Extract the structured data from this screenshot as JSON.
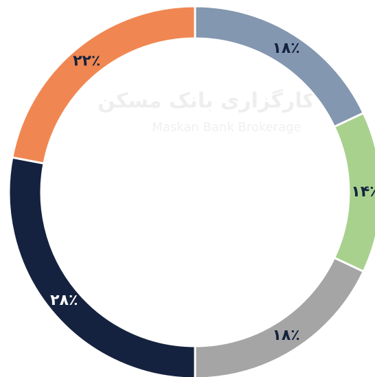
{
  "chart_data": {
    "type": "donut",
    "watermark": [
      "کارگزاری بانک مسکن",
      "Maskan Bank Brokerage"
    ],
    "values": [
      18,
      14,
      18,
      28,
      22
    ],
    "value_labels": [
      "۱۸٪",
      "۱۴٪",
      "۱۸٪",
      "۲۸٪",
      "۲۲٪"
    ],
    "colors": [
      "#8497b0",
      "#a9d18e",
      "#a5a5a5",
      "#15223f",
      "#f08752"
    ],
    "label_colors": [
      "#15223f",
      "#15223f",
      "#15223f",
      "#ffffff",
      "#15223f"
    ]
  }
}
